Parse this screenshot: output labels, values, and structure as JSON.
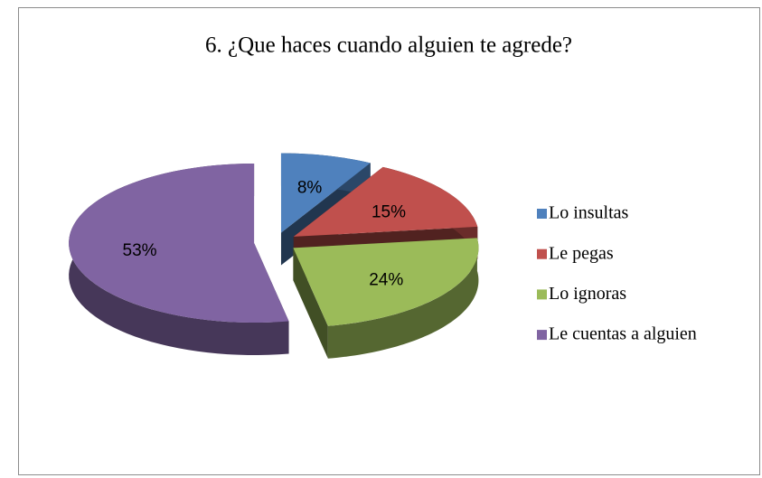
{
  "chart_data": {
    "type": "pie3d",
    "title": "6. ¿Que haces cuando alguien te agrede?",
    "categories": [
      "Lo insultas",
      "Le pegas",
      "Lo ignoras",
      "Le cuentas a alguien"
    ],
    "values": [
      8,
      15,
      24,
      53
    ],
    "value_labels": [
      "8%",
      "15%",
      "24%",
      "53%"
    ],
    "colors": [
      "#4f81bd",
      "#c0504d",
      "#9bbb59",
      "#8064a2"
    ],
    "legend": "right"
  }
}
